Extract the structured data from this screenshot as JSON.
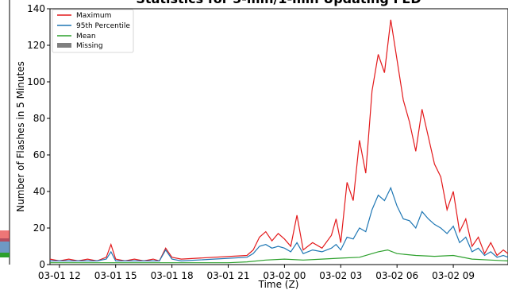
{
  "chart_data": {
    "type": "line",
    "title": "Statistics for 5-min/1-min Updating FED",
    "xlabel": "Time (Z)",
    "ylabel": "Number of Flashes in 5 Minutes",
    "xlim": [
      "03-01 11:30",
      "03-02 11:55"
    ],
    "ylim": [
      0,
      140
    ],
    "yticks": [
      0,
      20,
      40,
      60,
      80,
      100,
      120,
      140
    ],
    "xticks": [
      "03-01 12",
      "03-01 15",
      "03-01 18",
      "03-01 21",
      "03-02 00",
      "03-02 03",
      "03-02 06",
      "03-02 09"
    ],
    "grid": false,
    "legend_position": "top-left",
    "series": [
      {
        "name": "Maximum",
        "color": "#e31a1c",
        "x": [
          "03-01 11:30",
          "03-01 12:00",
          "03-01 12:30",
          "03-01 13:00",
          "03-01 13:30",
          "03-01 14:00",
          "03-01 14:30",
          "03-01 14:45",
          "03-01 15:00",
          "03-01 15:30",
          "03-01 16:00",
          "03-01 16:30",
          "03-01 17:00",
          "03-01 17:20",
          "03-01 17:40",
          "03-01 18:00",
          "03-01 18:30",
          "03-01 22:00",
          "03-01 22:20",
          "03-01 22:40",
          "03-01 23:00",
          "03-01 23:20",
          "03-01 23:40",
          "03-02 00:00",
          "03-02 00:20",
          "03-02 00:40",
          "03-02 01:00",
          "03-02 01:30",
          "03-02 02:00",
          "03-02 02:30",
          "03-02 02:45",
          "03-02 03:00",
          "03-02 03:20",
          "03-02 03:40",
          "03-02 04:00",
          "03-02 04:20",
          "03-02 04:40",
          "03-02 05:00",
          "03-02 05:20",
          "03-02 05:40",
          "03-02 06:00",
          "03-02 06:20",
          "03-02 06:40",
          "03-02 07:00",
          "03-02 07:20",
          "03-02 07:40",
          "03-02 08:00",
          "03-02 08:20",
          "03-02 08:40",
          "03-02 09:00",
          "03-02 09:20",
          "03-02 09:40",
          "03-02 10:00",
          "03-02 10:20",
          "03-02 10:40",
          "03-02 11:00",
          "03-02 11:20",
          "03-02 11:40",
          "03-02 11:55"
        ],
        "y": [
          3,
          2,
          3,
          2,
          3,
          2,
          4,
          11,
          3,
          2,
          3,
          2,
          3,
          2,
          9,
          4,
          3,
          5,
          8,
          15,
          18,
          13,
          17,
          14,
          10,
          27,
          8,
          12,
          9,
          16,
          25,
          12,
          45,
          35,
          68,
          50,
          95,
          115,
          105,
          134,
          112,
          90,
          78,
          62,
          85,
          70,
          55,
          48,
          30,
          40,
          18,
          25,
          10,
          15,
          6,
          12,
          5,
          8,
          6
        ]
      },
      {
        "name": "95th Percentile",
        "color": "#1f77b4",
        "x": [
          "03-01 11:30",
          "03-01 12:00",
          "03-01 12:30",
          "03-01 13:00",
          "03-01 13:30",
          "03-01 14:00",
          "03-01 14:30",
          "03-01 14:45",
          "03-01 15:00",
          "03-01 15:30",
          "03-01 16:00",
          "03-01 16:30",
          "03-01 17:00",
          "03-01 17:20",
          "03-01 17:40",
          "03-01 18:00",
          "03-01 18:30",
          "03-01 22:00",
          "03-01 22:20",
          "03-01 22:40",
          "03-01 23:00",
          "03-01 23:20",
          "03-01 23:40",
          "03-02 00:00",
          "03-02 00:20",
          "03-02 00:40",
          "03-02 01:00",
          "03-02 01:30",
          "03-02 02:00",
          "03-02 02:30",
          "03-02 02:45",
          "03-02 03:00",
          "03-02 03:20",
          "03-02 03:40",
          "03-02 04:00",
          "03-02 04:20",
          "03-02 04:40",
          "03-02 05:00",
          "03-02 05:20",
          "03-02 05:40",
          "03-02 06:00",
          "03-02 06:20",
          "03-02 06:40",
          "03-02 07:00",
          "03-02 07:20",
          "03-02 07:40",
          "03-02 08:00",
          "03-02 08:20",
          "03-02 08:40",
          "03-02 09:00",
          "03-02 09:20",
          "03-02 09:40",
          "03-02 10:00",
          "03-02 10:20",
          "03-02 10:40",
          "03-02 11:00",
          "03-02 11:20",
          "03-02 11:40",
          "03-02 11:55"
        ],
        "y": [
          2,
          2,
          2,
          2,
          2,
          2,
          3,
          7,
          2,
          2,
          2,
          2,
          2,
          2,
          8,
          3,
          2,
          4,
          6,
          10,
          11,
          9,
          10,
          9,
          7,
          12,
          6,
          8,
          7,
          9,
          11,
          8,
          15,
          14,
          20,
          18,
          30,
          38,
          35,
          42,
          32,
          25,
          24,
          20,
          29,
          25,
          22,
          20,
          17,
          21,
          12,
          15,
          7,
          9,
          5,
          7,
          4,
          5,
          4
        ]
      },
      {
        "name": "Mean",
        "color": "#2ca02c",
        "x": [
          "03-01 11:30",
          "03-01 12:30",
          "03-01 14:00",
          "03-01 15:00",
          "03-01 16:30",
          "03-01 18:00",
          "03-01 18:30",
          "03-01 21:00",
          "03-01 22:00",
          "03-01 23:00",
          "03-02 00:00",
          "03-02 01:00",
          "03-02 02:00",
          "03-02 03:00",
          "03-02 04:00",
          "03-02 05:00",
          "03-02 05:30",
          "03-02 06:00",
          "03-02 07:00",
          "03-02 08:00",
          "03-02 09:00",
          "03-02 10:00",
          "03-02 11:00",
          "03-02 11:55"
        ],
        "y": [
          1,
          1,
          1,
          1,
          1,
          1,
          1,
          1,
          1.5,
          2.5,
          3,
          2.5,
          3,
          3.5,
          4,
          7,
          8,
          6,
          5,
          4.5,
          5,
          3,
          2.5,
          2
        ]
      }
    ],
    "missing_legend_label": "Missing",
    "missing_color": "#7f7f7f"
  }
}
